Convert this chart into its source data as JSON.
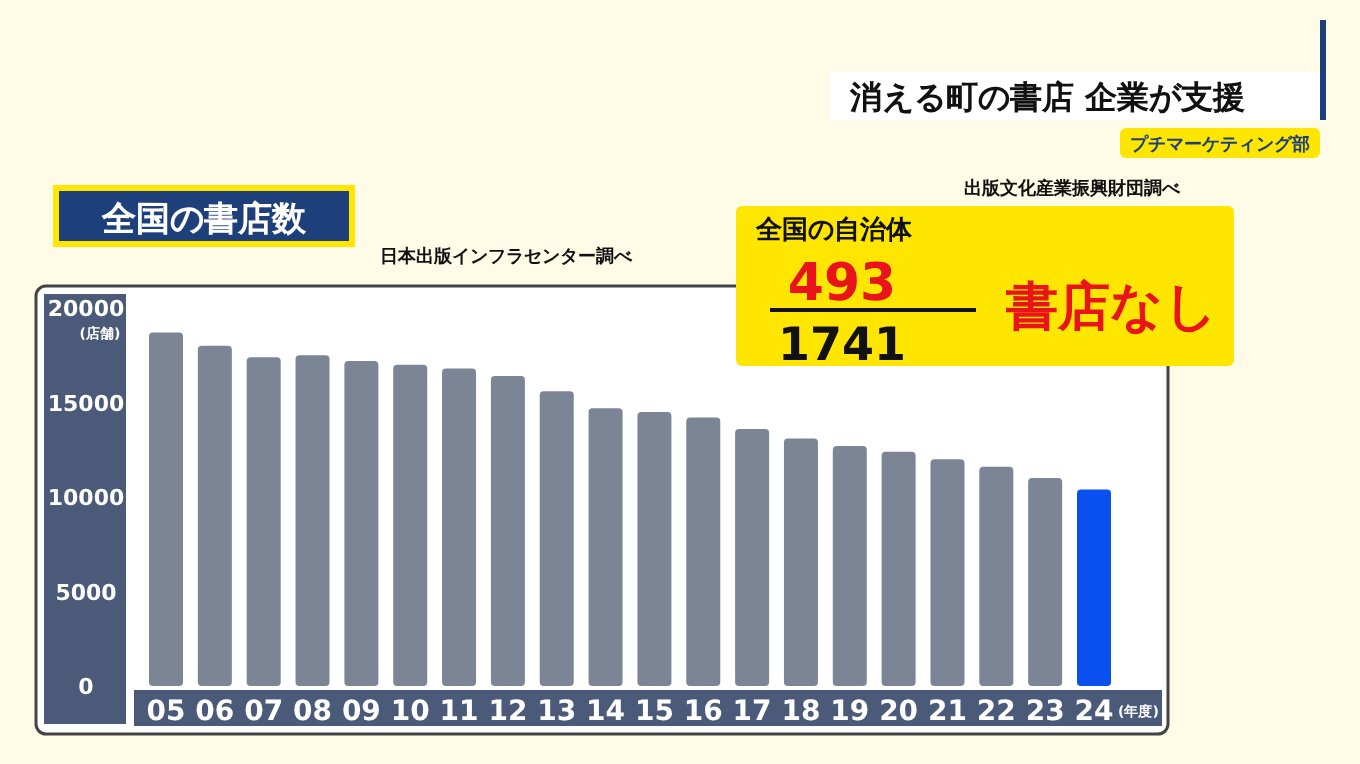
{
  "chart_data": {
    "type": "bar",
    "title": "全国の書店数",
    "subtitle": "消える町の書店 企業が支援",
    "xlabel": "(年度)",
    "ylabel": "(店舗)",
    "categories": [
      "05",
      "06",
      "07",
      "08",
      "09",
      "10",
      "11",
      "12",
      "13",
      "14",
      "15",
      "16",
      "17",
      "18",
      "19",
      "20",
      "21",
      "22",
      "23",
      "24"
    ],
    "values": [
      18700,
      18000,
      17400,
      17500,
      17200,
      17000,
      16800,
      16400,
      15600,
      14700,
      14500,
      14200,
      13600,
      13100,
      12700,
      12400,
      12000,
      11600,
      11000,
      10400
    ],
    "colors": [
      "#7b8596",
      "#7b8596",
      "#7b8596",
      "#7b8596",
      "#7b8596",
      "#7b8596",
      "#7b8596",
      "#7b8596",
      "#7b8596",
      "#7b8596",
      "#7b8596",
      "#7b8596",
      "#7b8596",
      "#7b8596",
      "#7b8596",
      "#7b8596",
      "#7b8596",
      "#7b8596",
      "#7b8596",
      "#0a4ff0"
    ],
    "ylim": [
      0,
      20000
    ],
    "yticks": [
      0,
      5000,
      10000,
      15000,
      20000
    ],
    "annotations": [
      "日本出版インフラセンター調べ",
      "出版文化産業振興財団調べ",
      "全国の自治体",
      "493",
      "1741",
      "書店なし",
      "プチマーケティング部"
    ]
  }
}
